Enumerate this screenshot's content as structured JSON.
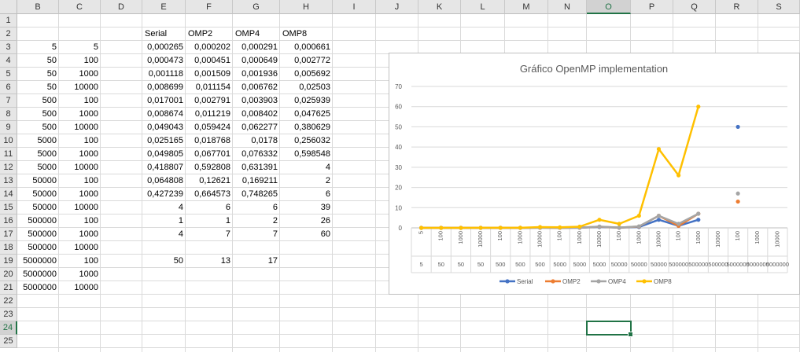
{
  "sheet": {
    "columns": [
      "B",
      "C",
      "D",
      "E",
      "F",
      "G",
      "H",
      "I",
      "J",
      "K",
      "L",
      "M",
      "N",
      "O",
      "P",
      "Q",
      "R",
      "S"
    ],
    "selected_column": "O",
    "rows": [
      "1",
      "2",
      "3",
      "4",
      "5",
      "6",
      "7",
      "8",
      "9",
      "10",
      "11",
      "12",
      "13",
      "14",
      "15",
      "16",
      "17",
      "18",
      "19",
      "20",
      "21",
      "22",
      "23",
      "24",
      "25"
    ],
    "selected_row": "24",
    "headers": {
      "E": "Serial",
      "F": "OMP2",
      "G": "OMP4",
      "H": "OMP8"
    },
    "data_rows": [
      {
        "row": "3",
        "B": "5",
        "C": "5",
        "E": "0,000265",
        "F": "0,000202",
        "G": "0,000291",
        "H": "0,000661"
      },
      {
        "row": "4",
        "B": "50",
        "C": "100",
        "E": "0,000473",
        "F": "0,000451",
        "G": "0,000649",
        "H": "0,002772"
      },
      {
        "row": "5",
        "B": "50",
        "C": "1000",
        "E": "0,001118",
        "F": "0,001509",
        "G": "0,001936",
        "H": "0,005692"
      },
      {
        "row": "6",
        "B": "50",
        "C": "10000",
        "E": "0,008699",
        "F": "0,011154",
        "G": "0,006762",
        "H": "0,02503"
      },
      {
        "row": "7",
        "B": "500",
        "C": "100",
        "E": "0,017001",
        "F": "0,002791",
        "G": "0,003903",
        "H": "0,025939"
      },
      {
        "row": "8",
        "B": "500",
        "C": "1000",
        "E": "0,008674",
        "F": "0,011219",
        "G": "0,008402",
        "H": "0,047625"
      },
      {
        "row": "9",
        "B": "500",
        "C": "10000",
        "E": "0,049043",
        "F": "0,059424",
        "G": "0,062277",
        "H": "0,380629"
      },
      {
        "row": "10",
        "B": "5000",
        "C": "100",
        "E": "0,025165",
        "F": "0,018768",
        "G": "0,0178",
        "H": "0,256032"
      },
      {
        "row": "11",
        "B": "5000",
        "C": "1000",
        "E": "0,049805",
        "F": "0,067701",
        "G": "0,076332",
        "H": "0,598548"
      },
      {
        "row": "12",
        "B": "5000",
        "C": "10000",
        "E": "0,418807",
        "F": "0,592808",
        "G": "0,631391",
        "H": "4"
      },
      {
        "row": "13",
        "B": "50000",
        "C": "100",
        "E": "0,064808",
        "F": "0,12621",
        "G": "0,169211",
        "H": "2"
      },
      {
        "row": "14",
        "B": "50000",
        "C": "1000",
        "E": "0,427239",
        "F": "0,664573",
        "G": "0,748265",
        "H": "6"
      },
      {
        "row": "15",
        "B": "50000",
        "C": "10000",
        "E": "4",
        "F": "6",
        "G": "6",
        "H": "39"
      },
      {
        "row": "16",
        "B": "500000",
        "C": "100",
        "E": "1",
        "F": "1",
        "G": "2",
        "H": "26"
      },
      {
        "row": "17",
        "B": "500000",
        "C": "1000",
        "E": "4",
        "F": "7",
        "G": "7",
        "H": "60"
      },
      {
        "row": "18",
        "B": "500000",
        "C": "10000",
        "E": "",
        "F": "",
        "G": "",
        "H": ""
      },
      {
        "row": "19",
        "B": "5000000",
        "C": "100",
        "E": "50",
        "F": "13",
        "G": "17",
        "H": ""
      },
      {
        "row": "20",
        "B": "5000000",
        "C": "1000",
        "E": "",
        "F": "",
        "G": "",
        "H": ""
      },
      {
        "row": "21",
        "B": "5000000",
        "C": "10000",
        "E": "",
        "F": "",
        "G": "",
        "H": ""
      }
    ]
  },
  "chart_data": {
    "type": "line",
    "title": "Gráfico OpenMP implementation",
    "ylim": [
      0,
      70
    ],
    "yticks": [
      "0",
      "10",
      "20",
      "30",
      "40",
      "50",
      "60",
      "70"
    ],
    "grid": true,
    "legend_position": "bottom",
    "x_inner": [
      "5",
      "100",
      "1000",
      "10000",
      "100",
      "1000",
      "10000",
      "100",
      "1000",
      "10000",
      "100",
      "1000",
      "10000",
      "100",
      "1000",
      "10000",
      "100",
      "1000",
      "10000"
    ],
    "x_outer": [
      "5",
      "50",
      "50",
      "50",
      "500",
      "500",
      "500",
      "5000",
      "5000",
      "5000",
      "50000",
      "50000",
      "50000",
      "500000",
      "500000",
      "500000",
      "5000000",
      "5000000",
      "5000000"
    ],
    "series": [
      {
        "name": "Serial",
        "color": "#4472C4",
        "values": [
          0.000265,
          0.000473,
          0.001118,
          0.008699,
          0.017001,
          0.008674,
          0.049043,
          0.025165,
          0.049805,
          0.418807,
          0.064808,
          0.427239,
          4,
          1,
          4,
          null,
          50,
          null,
          null
        ]
      },
      {
        "name": "OMP2",
        "color": "#ED7D31",
        "values": [
          0.000202,
          0.000451,
          0.001509,
          0.011154,
          0.002791,
          0.011219,
          0.059424,
          0.018768,
          0.067701,
          0.592808,
          0.12621,
          0.664573,
          6,
          1,
          7,
          null,
          13,
          null,
          null
        ]
      },
      {
        "name": "OMP4",
        "color": "#A5A5A5",
        "values": [
          0.000291,
          0.000649,
          0.001936,
          0.006762,
          0.003903,
          0.008402,
          0.062277,
          0.0178,
          0.076332,
          0.631391,
          0.169211,
          0.748265,
          6,
          2,
          7,
          null,
          17,
          null,
          null
        ]
      },
      {
        "name": "OMP8",
        "color": "#FFC000",
        "values": [
          0.000661,
          0.002772,
          0.005692,
          0.02503,
          0.025939,
          0.047625,
          0.380629,
          0.256032,
          0.598548,
          4,
          2,
          6,
          39,
          26,
          60,
          null,
          null,
          null,
          null
        ]
      }
    ]
  }
}
